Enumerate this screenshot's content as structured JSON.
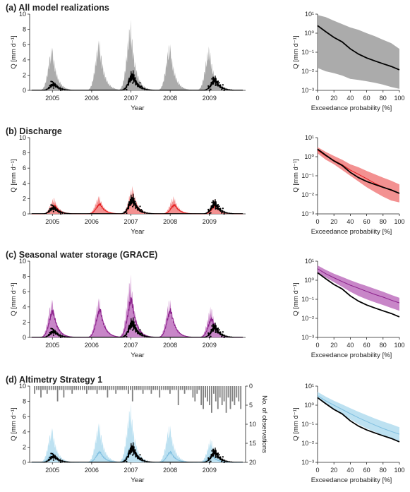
{
  "figure": {
    "ts_xlabel": "Year",
    "ts_ylabel": "Q [mm d⁻¹]",
    "fdc_xlabel": "Exceedance probability [%]",
    "fdc_ylabel": "Q [mm d⁻¹]",
    "obs_axis_label": "No. of observations",
    "colors": {
      "obs": "#000000",
      "all": "#a6a6a6",
      "discharge_band": "#f28b8b",
      "discharge_line": "#e41a1c",
      "grace_band": "#c57fc5",
      "grace_line": "#8a1f8a",
      "alt_band": "#b9dff0",
      "alt_line": "#7fbfe0",
      "alt_obs_bars": "#808080"
    }
  },
  "chart_data": [
    {
      "type": "area",
      "panel": "a",
      "title": "(a) All model realizations",
      "xlabel": "Year",
      "ylabel": "Q [mm d⁻¹]",
      "xlim": [
        2004.42,
        2009.92
      ],
      "ylim": [
        0,
        10
      ],
      "xticks": [
        2005,
        2006,
        2007,
        2008,
        2009
      ],
      "yticks": [
        0,
        2,
        4,
        6,
        8,
        10
      ],
      "band_peaks": [
        {
          "year": 2005.0,
          "upper": 6.0,
          "median": 0
        },
        {
          "year": 2006.2,
          "upper": 7.0,
          "median": 0
        },
        {
          "year": 2007.0,
          "upper": 9.3,
          "median": 0
        },
        {
          "year": 2008.0,
          "upper": 6.5,
          "median": 0
        },
        {
          "year": 2009.0,
          "upper": 6.0,
          "median": 0
        }
      ],
      "observed_peaks": [
        {
          "year": 2005.05,
          "value": 1.2
        },
        {
          "year": 2006.2,
          "value": 0.0
        },
        {
          "year": 2007.05,
          "value": 2.8
        },
        {
          "year": 2008.1,
          "value": 0.0
        },
        {
          "year": 2009.15,
          "value": 2.0
        }
      ],
      "fdc": {
        "type": "line",
        "xlabel": "Exceedance probability [%]",
        "ylabel": "Q [mm d⁻¹]",
        "xlim": [
          0,
          100
        ],
        "xticks": [
          0,
          20,
          40,
          60,
          80,
          100
        ],
        "yscale": "log",
        "ylim": [
          0.001,
          10
        ],
        "ytick_labels": [
          "10⁻³",
          "10⁻²",
          "10⁻¹",
          "10⁰",
          "10¹"
        ],
        "x": [
          0,
          10,
          20,
          30,
          40,
          50,
          60,
          70,
          80,
          90,
          100
        ],
        "band_upper": [
          9,
          7,
          4.5,
          3,
          2,
          1.5,
          1,
          0.7,
          0.45,
          0.3,
          0.15
        ],
        "band_lower": [
          0.015,
          0.01,
          0.008,
          0.006,
          0.004,
          0.0035,
          0.003,
          0.0025,
          0.002,
          0.0015,
          0.0012
        ],
        "observed": [
          2.5,
          1.2,
          0.6,
          0.35,
          0.15,
          0.08,
          0.05,
          0.035,
          0.025,
          0.018,
          0.012
        ]
      }
    },
    {
      "type": "area",
      "panel": "b",
      "title": "(b) Discharge",
      "xlabel": "Year",
      "ylabel": "Q [mm d⁻¹]",
      "xlim": [
        2004.42,
        2009.92
      ],
      "ylim": [
        0,
        10
      ],
      "xticks": [
        2005,
        2006,
        2007,
        2008,
        2009
      ],
      "yticks": [
        0,
        2,
        4,
        6,
        8,
        10
      ],
      "band_peaks": [
        {
          "year": 2005.05,
          "upper": 2.2,
          "median": 1.2
        },
        {
          "year": 2006.2,
          "upper": 2.5,
          "median": 1.4
        },
        {
          "year": 2007.05,
          "upper": 3.8,
          "median": 2.2
        },
        {
          "year": 2008.1,
          "upper": 2.4,
          "median": 1.3
        },
        {
          "year": 2009.15,
          "upper": 2.0,
          "median": 1.2
        }
      ],
      "observed_peaks": [
        {
          "year": 2005.05,
          "value": 1.2
        },
        {
          "year": 2006.2,
          "value": 0.0
        },
        {
          "year": 2007.05,
          "value": 2.8
        },
        {
          "year": 2008.1,
          "value": 0.0
        },
        {
          "year": 2009.15,
          "value": 2.0
        }
      ],
      "fdc": {
        "type": "line",
        "xlabel": "Exceedance probability [%]",
        "ylabel": "Q [mm d⁻¹]",
        "xlim": [
          0,
          100
        ],
        "xticks": [
          0,
          20,
          40,
          60,
          80,
          100
        ],
        "yscale": "log",
        "ylim": [
          0.001,
          10
        ],
        "ytick_labels": [
          "10⁻³",
          "10⁻²",
          "10⁻¹",
          "10⁰",
          "10¹"
        ],
        "x": [
          0,
          10,
          20,
          30,
          40,
          50,
          60,
          70,
          80,
          90,
          100
        ],
        "band_upper": [
          3.2,
          1.8,
          1.1,
          0.7,
          0.4,
          0.28,
          0.18,
          0.12,
          0.08,
          0.055,
          0.035
        ],
        "band_lower": [
          1.5,
          0.7,
          0.4,
          0.2,
          0.1,
          0.05,
          0.025,
          0.014,
          0.008,
          0.005,
          0.004
        ],
        "median": [
          2.2,
          1.1,
          0.65,
          0.38,
          0.2,
          0.12,
          0.07,
          0.04,
          0.026,
          0.017,
          0.012
        ],
        "observed": [
          2.5,
          1.2,
          0.6,
          0.35,
          0.15,
          0.08,
          0.05,
          0.035,
          0.025,
          0.018,
          0.012
        ]
      }
    },
    {
      "type": "area",
      "panel": "c",
      "title": "(c) Seasonal water storage (GRACE)",
      "xlabel": "Year",
      "ylabel": "Q [mm d⁻¹]",
      "xlim": [
        2004.42,
        2009.92
      ],
      "ylim": [
        0,
        10
      ],
      "xticks": [
        2005,
        2006,
        2007,
        2008,
        2009
      ],
      "yticks": [
        0,
        2,
        4,
        6,
        8,
        10
      ],
      "band_peaks": [
        {
          "year": 2005.0,
          "upper": 5.3,
          "median": 3.8
        },
        {
          "year": 2006.2,
          "upper": 5.5,
          "median": 4.0
        },
        {
          "year": 2007.0,
          "upper": 8.3,
          "median": 5.5
        },
        {
          "year": 2008.0,
          "upper": 5.3,
          "median": 3.9
        },
        {
          "year": 2009.05,
          "upper": 4.2,
          "median": 2.7
        }
      ],
      "observed_peaks": [
        {
          "year": 2005.05,
          "value": 1.2
        },
        {
          "year": 2006.2,
          "value": 0.0
        },
        {
          "year": 2007.05,
          "value": 2.8
        },
        {
          "year": 2008.1,
          "value": 0.0
        },
        {
          "year": 2009.15,
          "value": 2.0
        }
      ],
      "fdc": {
        "type": "line",
        "xlabel": "Exceedance probability [%]",
        "ylabel": "Q [mm d⁻¹]",
        "xlim": [
          0,
          100
        ],
        "xticks": [
          0,
          20,
          40,
          60,
          80,
          100
        ],
        "yscale": "log",
        "ylim": [
          0.001,
          10
        ],
        "ytick_labels": [
          "10⁻³",
          "10⁻²",
          "10⁻¹",
          "10⁰",
          "10¹"
        ],
        "x": [
          0,
          10,
          20,
          30,
          40,
          50,
          60,
          70,
          80,
          90,
          100
        ],
        "band_upper": [
          6,
          3.5,
          2.2,
          1.5,
          1.0,
          0.7,
          0.5,
          0.35,
          0.25,
          0.17,
          0.12
        ],
        "band_lower": [
          2.5,
          1.4,
          0.8,
          0.45,
          0.25,
          0.15,
          0.1,
          0.07,
          0.05,
          0.035,
          0.025
        ],
        "median": [
          4,
          2.2,
          1.35,
          0.85,
          0.55,
          0.38,
          0.26,
          0.18,
          0.13,
          0.09,
          0.065
        ],
        "observed": [
          2.5,
          1.2,
          0.6,
          0.35,
          0.15,
          0.08,
          0.05,
          0.035,
          0.025,
          0.018,
          0.012
        ]
      }
    },
    {
      "type": "area",
      "panel": "d",
      "title": "(d) Altimetry Strategy 1",
      "xlabel": "Year",
      "ylabel": "Q [mm d⁻¹]",
      "y2label": "No. of observations",
      "xlim": [
        2004.42,
        2009.92
      ],
      "ylim": [
        0,
        10
      ],
      "y2lim": [
        0,
        20
      ],
      "xticks": [
        2005,
        2006,
        2007,
        2008,
        2009
      ],
      "yticks": [
        0,
        2,
        4,
        6,
        8,
        10
      ],
      "y2ticks": [
        0,
        5,
        10,
        15,
        20
      ],
      "band_peaks": [
        {
          "year": 2005.0,
          "upper": 4.8,
          "median": 1.3
        },
        {
          "year": 2006.2,
          "upper": 5.5,
          "median": 1.5
        },
        {
          "year": 2007.0,
          "upper": 7.8,
          "median": 2.2
        },
        {
          "year": 2008.0,
          "upper": 5.2,
          "median": 1.5
        },
        {
          "year": 2009.05,
          "upper": 3.2,
          "median": 1.0
        }
      ],
      "observed_peaks": [
        {
          "year": 2005.05,
          "value": 1.2
        },
        {
          "year": 2006.2,
          "value": 0.0
        },
        {
          "year": 2007.05,
          "value": 2.8
        },
        {
          "year": 2008.1,
          "value": 0.0
        },
        {
          "year": 2009.15,
          "value": 2.0
        }
      ],
      "altimetry_observation_counts": {
        "start_year": 2004.55,
        "end_year": 2009.8,
        "counts": [
          2,
          1,
          1,
          3,
          1,
          1,
          2,
          1,
          1,
          1,
          1,
          4,
          1,
          1,
          3,
          1,
          1,
          1,
          2,
          1,
          1,
          1,
          1,
          1,
          1,
          2,
          1,
          1,
          1,
          1,
          2,
          1,
          1,
          1,
          1,
          3,
          1,
          1,
          1,
          2,
          1,
          1,
          1,
          1,
          1,
          2,
          1,
          4,
          1,
          1,
          1,
          1,
          2,
          1,
          1,
          1,
          2,
          1,
          1,
          1,
          3,
          1,
          1,
          1,
          1,
          2,
          1,
          1,
          1,
          5,
          1,
          1,
          2,
          1,
          1,
          1,
          3,
          4,
          2,
          1,
          5,
          6,
          3,
          4,
          5,
          7,
          2,
          4,
          6,
          3,
          5,
          4,
          7,
          3,
          6,
          4,
          5,
          3,
          4,
          6
        ]
      },
      "fdc": {
        "type": "line",
        "xlabel": "Exceedance probability [%]",
        "ylabel": "Q [mm d⁻¹]",
        "xlim": [
          0,
          100
        ],
        "xticks": [
          0,
          20,
          40,
          60,
          80,
          100
        ],
        "yscale": "log",
        "ylim": [
          0.001,
          10
        ],
        "ytick_labels": [
          "10⁻³",
          "10⁻²",
          "10⁻¹",
          "10⁰",
          "10¹"
        ],
        "x": [
          0,
          10,
          20,
          30,
          40,
          50,
          60,
          70,
          80,
          90,
          100
        ],
        "band_upper": [
          5,
          2.8,
          1.7,
          1.1,
          0.7,
          0.45,
          0.3,
          0.2,
          0.14,
          0.1,
          0.07
        ],
        "band_lower": [
          2.2,
          1.1,
          0.6,
          0.32,
          0.18,
          0.1,
          0.06,
          0.04,
          0.026,
          0.018,
          0.012
        ],
        "median": [
          3.2,
          1.7,
          1.0,
          0.6,
          0.36,
          0.22,
          0.14,
          0.09,
          0.06,
          0.042,
          0.03
        ],
        "observed": [
          2.5,
          1.2,
          0.6,
          0.35,
          0.15,
          0.08,
          0.05,
          0.035,
          0.025,
          0.018,
          0.012
        ]
      }
    }
  ]
}
